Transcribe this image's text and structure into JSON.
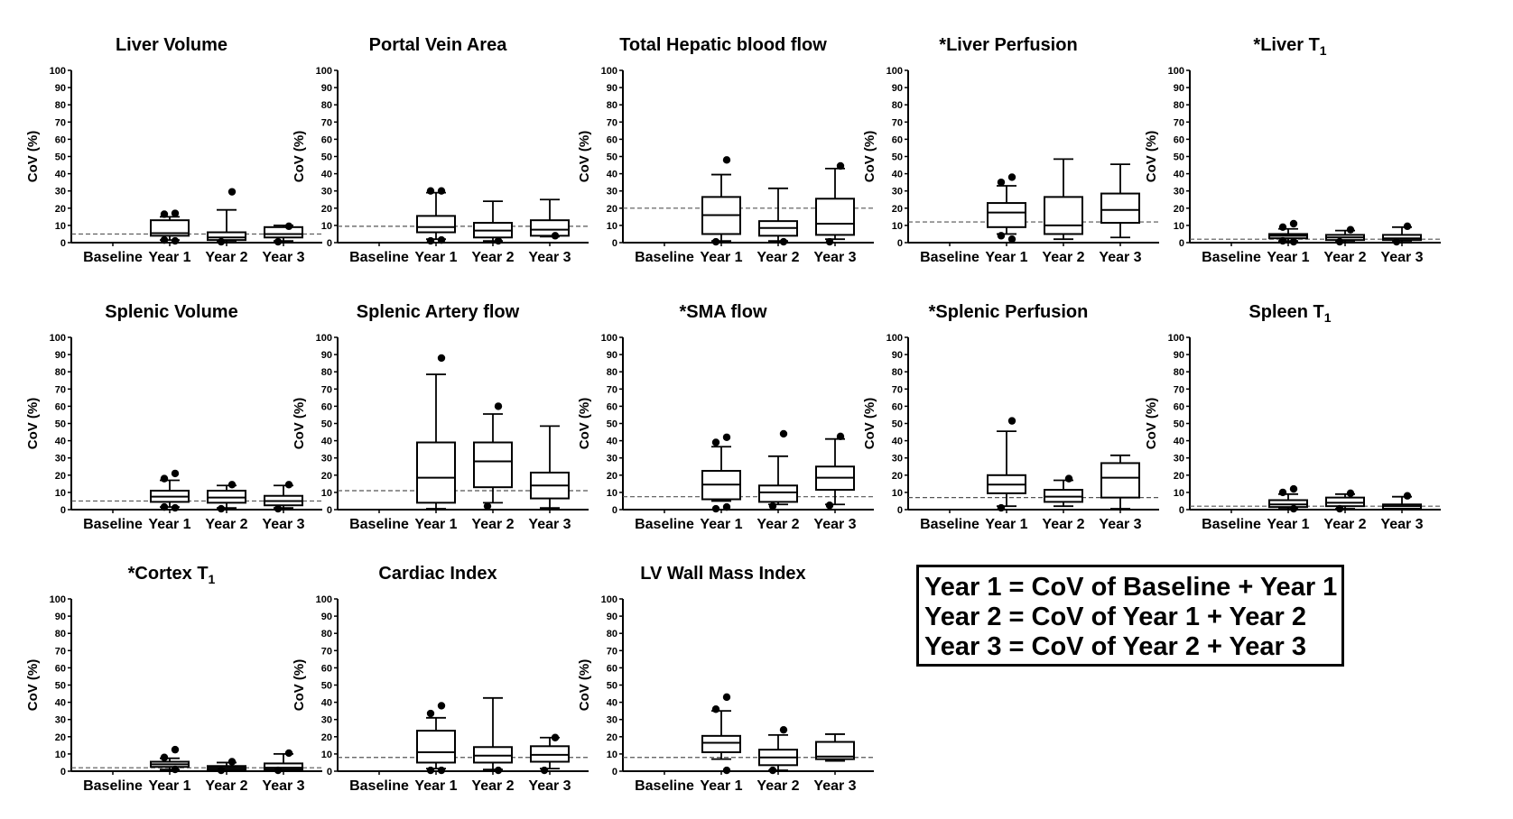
{
  "figure": {
    "legend": [
      "Year 1 = CoV of Baseline + Year 1",
      "Year 2 = CoV of Year 1 + Year 2",
      "Year 3 = CoV of Year 2 + Year 3"
    ]
  },
  "chart_data": [
    {
      "type": "box",
      "title": "Liver Volume",
      "title_sub": "",
      "ylabel": "CoV (%)",
      "ylim": [
        0,
        100
      ],
      "yticks": [
        0,
        10,
        20,
        30,
        40,
        50,
        60,
        70,
        80,
        90,
        100
      ],
      "categories": [
        "Baseline",
        "Year 1",
        "Year 2",
        "Year 3"
      ],
      "reference_line": 5,
      "boxes": [
        null,
        {
          "min": 1.5,
          "q1": 4,
          "median": 5.5,
          "q3": 13,
          "max": 15,
          "outliers": [
            17,
            16.5,
            1,
            1.5
          ]
        },
        {
          "min": 0.5,
          "q1": 1.5,
          "median": 3,
          "q3": 6,
          "max": 19,
          "outliers": [
            29.5,
            0.5
          ]
        },
        {
          "min": 1,
          "q1": 3,
          "median": 5,
          "q3": 9,
          "max": 10,
          "outliers": [
            9.5,
            0.5
          ]
        }
      ]
    },
    {
      "type": "box",
      "title": "Portal Vein Area",
      "title_sub": "",
      "ylabel": "CoV (%)",
      "ylim": [
        0,
        100
      ],
      "yticks": [
        0,
        10,
        20,
        30,
        40,
        50,
        60,
        70,
        80,
        90,
        100
      ],
      "categories": [
        "Baseline",
        "Year 1",
        "Year 2",
        "Year 3"
      ],
      "reference_line": 9.5,
      "boxes": [
        null,
        {
          "min": 2,
          "q1": 6,
          "median": 9,
          "q3": 15.5,
          "max": 29,
          "outliers": [
            30,
            30,
            1.5,
            1
          ]
        },
        {
          "min": 1,
          "q1": 3,
          "median": 7,
          "q3": 11.5,
          "max": 24,
          "outliers": [
            1
          ]
        },
        {
          "min": 3.5,
          "q1": 4,
          "median": 7.5,
          "q3": 13,
          "max": 25,
          "outliers": [
            4
          ]
        }
      ]
    },
    {
      "type": "box",
      "title": "Total Hepatic blood flow",
      "title_sub": "",
      "ylabel": "CoV (%)",
      "ylim": [
        0,
        100
      ],
      "yticks": [
        0,
        10,
        20,
        30,
        40,
        50,
        60,
        70,
        80,
        90,
        100
      ],
      "categories": [
        "Baseline",
        "Year 1",
        "Year 2",
        "Year 3"
      ],
      "reference_line": 20,
      "boxes": [
        null,
        {
          "min": 1,
          "q1": 5,
          "median": 16,
          "q3": 26.5,
          "max": 39.5,
          "outliers": [
            48,
            0.5
          ]
        },
        {
          "min": 1,
          "q1": 4,
          "median": 8.5,
          "q3": 12.5,
          "max": 31.5,
          "outliers": [
            0.5
          ]
        },
        {
          "min": 2,
          "q1": 4.5,
          "median": 11,
          "q3": 25.5,
          "max": 43,
          "outliers": [
            44.5,
            0.5
          ]
        }
      ]
    },
    {
      "type": "box",
      "title": "*Liver Perfusion",
      "title_sub": "",
      "ylabel": "CoV (%)",
      "ylim": [
        0,
        100
      ],
      "yticks": [
        0,
        10,
        20,
        30,
        40,
        50,
        60,
        70,
        80,
        90,
        100
      ],
      "categories": [
        "Baseline",
        "Year 1",
        "Year 2",
        "Year 3"
      ],
      "reference_line": 12,
      "boxes": [
        null,
        {
          "min": 5,
          "q1": 9,
          "median": 17.5,
          "q3": 23,
          "max": 33,
          "outliers": [
            38,
            35,
            2,
            4
          ]
        },
        {
          "min": 2,
          "q1": 5,
          "median": 10,
          "q3": 26.5,
          "max": 48.5,
          "outliers": []
        },
        {
          "min": 3,
          "q1": 11.5,
          "median": 19,
          "q3": 28.5,
          "max": 45.5,
          "outliers": []
        }
      ]
    },
    {
      "type": "box",
      "title": "*Liver T",
      "title_sub": "1",
      "ylabel": "CoV (%)",
      "ylim": [
        0,
        100
      ],
      "yticks": [
        0,
        10,
        20,
        30,
        40,
        50,
        60,
        70,
        80,
        90,
        100
      ],
      "categories": [
        "Baseline",
        "Year 1",
        "Year 2",
        "Year 3"
      ],
      "reference_line": 2,
      "boxes": [
        null,
        {
          "min": 1,
          "q1": 2.5,
          "median": 4,
          "q3": 5,
          "max": 8,
          "outliers": [
            11,
            9,
            0.5,
            1
          ]
        },
        {
          "min": 0.5,
          "q1": 1.5,
          "median": 3,
          "q3": 4.5,
          "max": 7,
          "outliers": [
            7.5,
            0.5
          ]
        },
        {
          "min": 0.5,
          "q1": 1.5,
          "median": 2.5,
          "q3": 4.5,
          "max": 9,
          "outliers": [
            9.5,
            0.5
          ]
        }
      ]
    },
    {
      "type": "box",
      "title": "Splenic Volume",
      "title_sub": "",
      "ylabel": "CoV (%)",
      "ylim": [
        0,
        100
      ],
      "yticks": [
        0,
        10,
        20,
        30,
        40,
        50,
        60,
        70,
        80,
        90,
        100
      ],
      "categories": [
        "Baseline",
        "Year 1",
        "Year 2",
        "Year 3"
      ],
      "reference_line": 5,
      "boxes": [
        null,
        {
          "min": 1.5,
          "q1": 4.5,
          "median": 7.5,
          "q3": 11,
          "max": 17,
          "outliers": [
            21,
            18,
            1,
            1.5
          ]
        },
        {
          "min": 1,
          "q1": 4,
          "median": 7,
          "q3": 11,
          "max": 14,
          "outliers": [
            14.5,
            0.5
          ]
        },
        {
          "min": 1,
          "q1": 2.5,
          "median": 5,
          "q3": 8,
          "max": 14,
          "outliers": [
            14.5,
            0.5
          ]
        }
      ]
    },
    {
      "type": "box",
      "title": "Splenic Artery flow",
      "title_sub": "",
      "ylabel": "CoV (%)",
      "ylim": [
        0,
        100
      ],
      "yticks": [
        0,
        10,
        20,
        30,
        40,
        50,
        60,
        70,
        80,
        90,
        100
      ],
      "categories": [
        "Baseline",
        "Year 1",
        "Year 2",
        "Year 3"
      ],
      "reference_line": 11,
      "boxes": [
        null,
        {
          "min": 0.5,
          "q1": 4,
          "median": 18.5,
          "q3": 39,
          "max": 78.5,
          "outliers": [
            88
          ]
        },
        {
          "min": 4,
          "q1": 13,
          "median": 28,
          "q3": 39,
          "max": 55.5,
          "outliers": [
            60,
            2
          ]
        },
        {
          "min": 1,
          "q1": 6.5,
          "median": 14,
          "q3": 21.5,
          "max": 48.5,
          "outliers": []
        }
      ]
    },
    {
      "type": "box",
      "title": "*SMA flow",
      "title_sub": "",
      "ylabel": "CoV (%)",
      "ylim": [
        0,
        100
      ],
      "yticks": [
        0,
        10,
        20,
        30,
        40,
        50,
        60,
        70,
        80,
        90,
        100
      ],
      "categories": [
        "Baseline",
        "Year 1",
        "Year 2",
        "Year 3"
      ],
      "reference_line": 7.5,
      "boxes": [
        null,
        {
          "min": 5,
          "q1": 6,
          "median": 14.5,
          "q3": 22.5,
          "max": 36.5,
          "outliers": [
            42,
            39,
            1.5,
            0.5
          ]
        },
        {
          "min": 3,
          "q1": 4.5,
          "median": 10,
          "q3": 14,
          "max": 31,
          "outliers": [
            44,
            2
          ]
        },
        {
          "min": 3,
          "q1": 11.5,
          "median": 18.5,
          "q3": 25,
          "max": 41,
          "outliers": [
            42.5,
            2.5
          ]
        }
      ]
    },
    {
      "type": "box",
      "title": "*Splenic Perfusion",
      "title_sub": "",
      "ylabel": "CoV (%)",
      "ylim": [
        0,
        100
      ],
      "yticks": [
        0,
        10,
        20,
        30,
        40,
        50,
        60,
        70,
        80,
        90,
        100
      ],
      "categories": [
        "Baseline",
        "Year 1",
        "Year 2",
        "Year 3"
      ],
      "reference_line": 7,
      "boxes": [
        null,
        {
          "min": 2,
          "q1": 9.5,
          "median": 14.5,
          "q3": 20,
          "max": 45.5,
          "outliers": [
            51.5,
            1
          ]
        },
        {
          "min": 2,
          "q1": 4.5,
          "median": 7.5,
          "q3": 11.5,
          "max": 17,
          "outliers": [
            18
          ]
        },
        {
          "min": 0.5,
          "q1": 7,
          "median": 18.5,
          "q3": 27,
          "max": 31.5,
          "outliers": []
        }
      ]
    },
    {
      "type": "box",
      "title": "Spleen T",
      "title_sub": "1",
      "ylabel": "CoV (%)",
      "ylim": [
        0,
        100
      ],
      "yticks": [
        0,
        10,
        20,
        30,
        40,
        50,
        60,
        70,
        80,
        90,
        100
      ],
      "categories": [
        "Baseline",
        "Year 1",
        "Year 2",
        "Year 3"
      ],
      "reference_line": 2,
      "boxes": [
        null,
        {
          "min": 0.5,
          "q1": 1.5,
          "median": 3,
          "q3": 5.5,
          "max": 9,
          "outliers": [
            12,
            10,
            0.5
          ]
        },
        {
          "min": 0.5,
          "q1": 2,
          "median": 4,
          "q3": 7,
          "max": 9,
          "outliers": [
            9.5,
            0.5
          ]
        },
        {
          "min": 0.5,
          "q1": 0.5,
          "median": 2,
          "q3": 3,
          "max": 7.5,
          "outliers": [
            8
          ]
        }
      ]
    },
    {
      "type": "box",
      "title": "*Cortex T",
      "title_sub": "1",
      "ylabel": "CoV (%)",
      "ylim": [
        0,
        100
      ],
      "yticks": [
        0,
        10,
        20,
        30,
        40,
        50,
        60,
        70,
        80,
        90,
        100
      ],
      "categories": [
        "Baseline",
        "Year 1",
        "Year 2",
        "Year 3"
      ],
      "reference_line": 2,
      "boxes": [
        null,
        {
          "min": 1,
          "q1": 2.5,
          "median": 4,
          "q3": 5.5,
          "max": 7.5,
          "outliers": [
            12.5,
            8,
            1
          ]
        },
        {
          "min": 0.5,
          "q1": 1,
          "median": 2,
          "q3": 3,
          "max": 5,
          "outliers": [
            5.5,
            0.5
          ]
        },
        {
          "min": 0.5,
          "q1": 1,
          "median": 2,
          "q3": 4.5,
          "max": 10,
          "outliers": [
            10.5,
            0.5
          ]
        }
      ]
    },
    {
      "type": "box",
      "title": "Cardiac Index",
      "title_sub": "",
      "ylabel": "CoV (%)",
      "ylim": [
        0,
        100
      ],
      "yticks": [
        0,
        10,
        20,
        30,
        40,
        50,
        60,
        70,
        80,
        90,
        100
      ],
      "categories": [
        "Baseline",
        "Year 1",
        "Year 2",
        "Year 3"
      ],
      "reference_line": 8,
      "boxes": [
        null,
        {
          "min": 1.5,
          "q1": 5,
          "median": 11,
          "q3": 23.5,
          "max": 31,
          "outliers": [
            38,
            33.5,
            0.5,
            0.5
          ]
        },
        {
          "min": 1,
          "q1": 5,
          "median": 9,
          "q3": 14,
          "max": 42.5,
          "outliers": [
            0.5
          ]
        },
        {
          "min": 1.5,
          "q1": 5.5,
          "median": 9.5,
          "q3": 14.5,
          "max": 19.5,
          "outliers": [
            19.5,
            0.5
          ]
        }
      ]
    },
    {
      "type": "box",
      "title": "LV Wall Mass Index",
      "title_sub": "",
      "ylabel": "CoV (%)",
      "ylim": [
        0,
        100
      ],
      "yticks": [
        0,
        10,
        20,
        30,
        40,
        50,
        60,
        70,
        80,
        90,
        100
      ],
      "categories": [
        "Baseline",
        "Year 1",
        "Year 2",
        "Year 3"
      ],
      "reference_line": 8,
      "boxes": [
        null,
        {
          "min": 7,
          "q1": 11,
          "median": 16.5,
          "q3": 20.5,
          "max": 35,
          "outliers": [
            43,
            36,
            0.5
          ]
        },
        {
          "min": 0.5,
          "q1": 3.5,
          "median": 8,
          "q3": 12.5,
          "max": 21,
          "outliers": [
            24,
            0.5
          ]
        },
        {
          "min": 6,
          "q1": 7,
          "median": 8.5,
          "q3": 17,
          "max": 21.5,
          "outliers": []
        }
      ]
    }
  ]
}
